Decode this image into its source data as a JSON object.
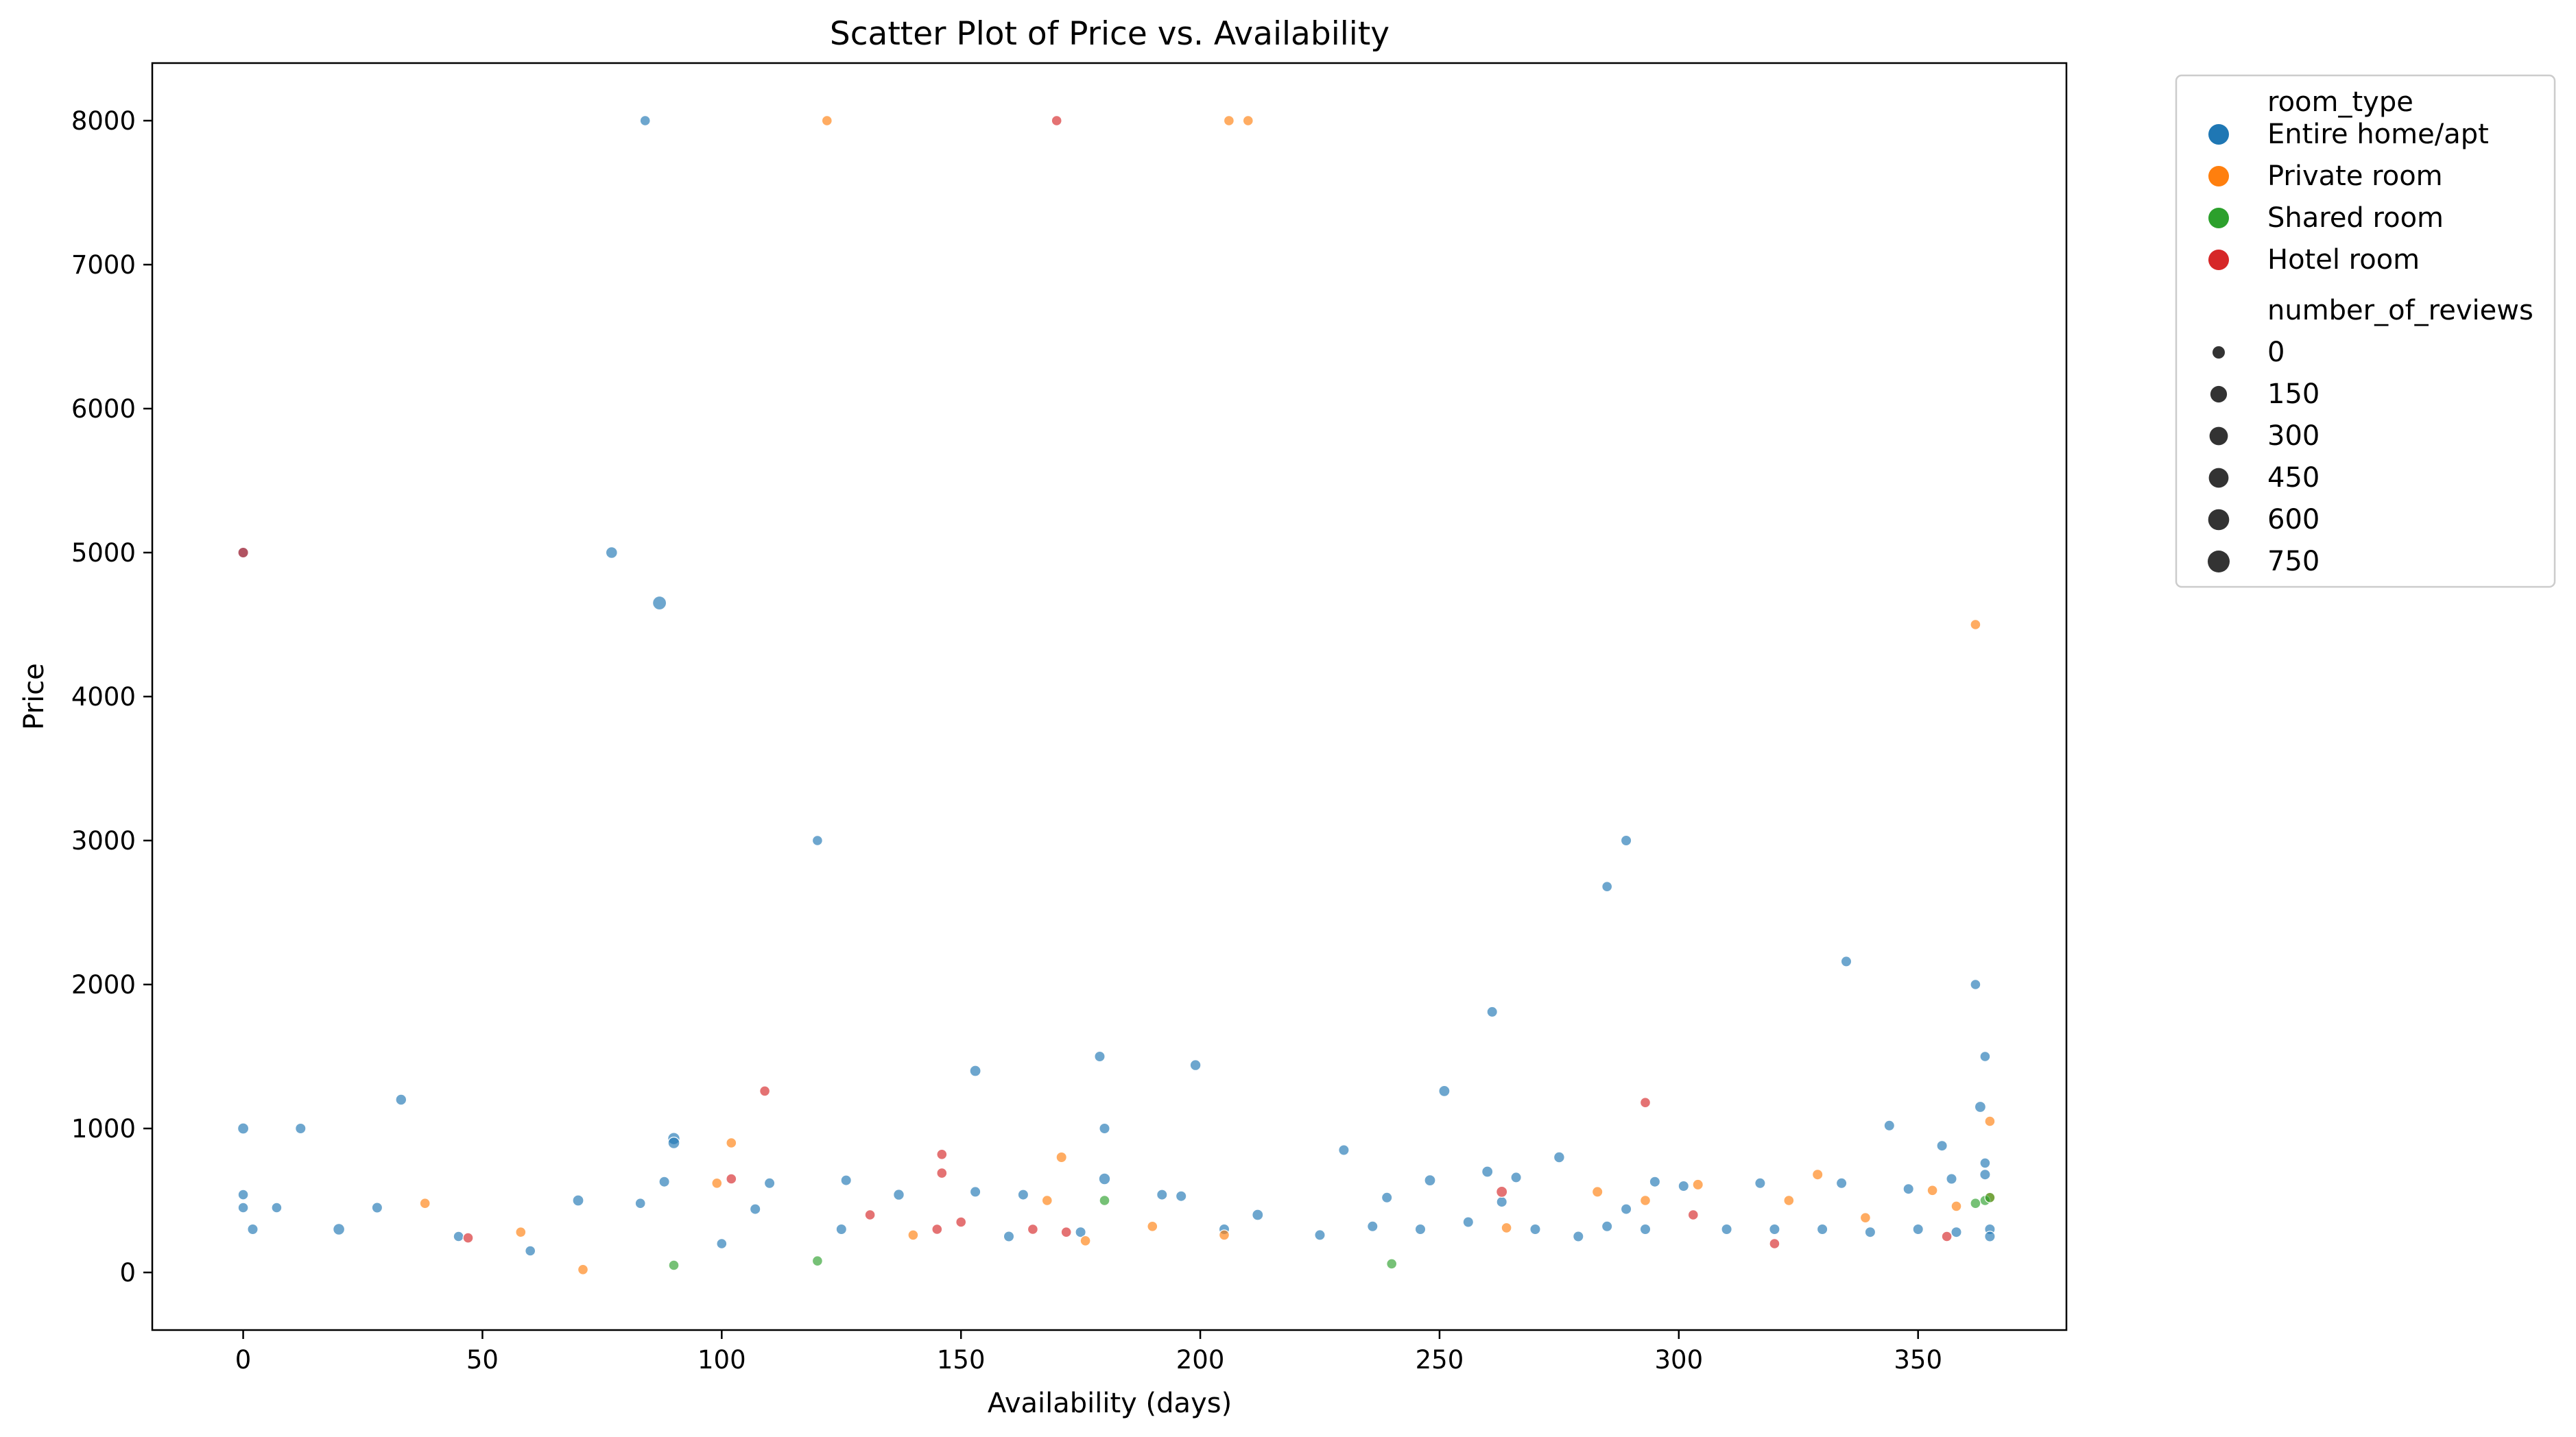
{
  "chart_data": {
    "type": "scatter",
    "title": "Scatter Plot of Price vs. Availability",
    "xlabel": "Availability (days)",
    "ylabel": "Price",
    "xlim": [
      -19,
      381
    ],
    "ylim": [
      -400,
      8400
    ],
    "xticks": [
      0,
      50,
      100,
      150,
      200,
      250,
      300,
      350
    ],
    "yticks": [
      0,
      1000,
      2000,
      3000,
      4000,
      5000,
      6000,
      7000,
      8000
    ],
    "grid": false,
    "legend": {
      "placement": "outside-right",
      "hue_title": "room_type",
      "size_title": "number_of_reviews",
      "size_levels": [
        0,
        150,
        300,
        450,
        600,
        750
      ]
    },
    "point_alpha": 0.65,
    "series": [
      {
        "name": "Entire home/apt",
        "color": "#1f77b4",
        "points": [
          [
            84,
            8000,
            30
          ],
          [
            0,
            5000,
            60
          ],
          [
            77,
            5000,
            90
          ],
          [
            87,
            4650,
            250
          ],
          [
            120,
            3000,
            30
          ],
          [
            289,
            3000,
            40
          ],
          [
            285,
            2680,
            30
          ],
          [
            335,
            2160,
            40
          ],
          [
            362,
            2000,
            30
          ],
          [
            261,
            1810,
            40
          ],
          [
            364,
            1500,
            30
          ],
          [
            179,
            1500,
            40
          ],
          [
            199,
            1440,
            50
          ],
          [
            153,
            1400,
            60
          ],
          [
            251,
            1260,
            60
          ],
          [
            33,
            1200,
            50
          ],
          [
            363,
            1150,
            60
          ],
          [
            0,
            1000,
            60
          ],
          [
            12,
            1000,
            40
          ],
          [
            180,
            1000,
            40
          ],
          [
            344,
            1020,
            40
          ],
          [
            90,
            930,
            120
          ],
          [
            90,
            900,
            90
          ],
          [
            230,
            850,
            40
          ],
          [
            275,
            800,
            50
          ],
          [
            355,
            880,
            40
          ],
          [
            364,
            760,
            30
          ],
          [
            260,
            700,
            60
          ],
          [
            0,
            540,
            30
          ],
          [
            0,
            450,
            30
          ],
          [
            7,
            450,
            30
          ],
          [
            28,
            450,
            40
          ],
          [
            70,
            500,
            60
          ],
          [
            83,
            480,
            30
          ],
          [
            88,
            630,
            40
          ],
          [
            107,
            440,
            40
          ],
          [
            110,
            620,
            40
          ],
          [
            126,
            640,
            40
          ],
          [
            137,
            540,
            50
          ],
          [
            153,
            560,
            40
          ],
          [
            163,
            540,
            40
          ],
          [
            180,
            650,
            80
          ],
          [
            192,
            540,
            40
          ],
          [
            196,
            530,
            40
          ],
          [
            239,
            520,
            40
          ],
          [
            248,
            640,
            60
          ],
          [
            263,
            490,
            40
          ],
          [
            266,
            660,
            40
          ],
          [
            289,
            440,
            40
          ],
          [
            295,
            630,
            40
          ],
          [
            301,
            600,
            40
          ],
          [
            317,
            620,
            40
          ],
          [
            334,
            620,
            40
          ],
          [
            348,
            580,
            40
          ],
          [
            357,
            650,
            40
          ],
          [
            364,
            680,
            40
          ],
          [
            2,
            300,
            40
          ],
          [
            20,
            300,
            90
          ],
          [
            45,
            250,
            30
          ],
          [
            60,
            150,
            30
          ],
          [
            100,
            200,
            30
          ],
          [
            125,
            300,
            40
          ],
          [
            160,
            250,
            40
          ],
          [
            175,
            280,
            40
          ],
          [
            205,
            300,
            40
          ],
          [
            212,
            400,
            60
          ],
          [
            225,
            260,
            40
          ],
          [
            236,
            320,
            40
          ],
          [
            246,
            300,
            40
          ],
          [
            256,
            350,
            40
          ],
          [
            270,
            300,
            40
          ],
          [
            279,
            250,
            40
          ],
          [
            285,
            320,
            40
          ],
          [
            293,
            300,
            40
          ],
          [
            310,
            300,
            40
          ],
          [
            320,
            300,
            40
          ],
          [
            330,
            300,
            40
          ],
          [
            340,
            280,
            40
          ],
          [
            350,
            300,
            40
          ],
          [
            358,
            280,
            40
          ],
          [
            365,
            300,
            40
          ],
          [
            365,
            250,
            40
          ]
        ]
      },
      {
        "name": "Private room",
        "color": "#ff7f0e",
        "points": [
          [
            122,
            8000,
            30
          ],
          [
            206,
            8000,
            30
          ],
          [
            210,
            8000,
            30
          ],
          [
            362,
            4500,
            30
          ],
          [
            365,
            1050,
            30
          ],
          [
            171,
            800,
            40
          ],
          [
            102,
            900,
            30
          ],
          [
            99,
            620,
            30
          ],
          [
            38,
            480,
            30
          ],
          [
            58,
            280,
            30
          ],
          [
            168,
            500,
            30
          ],
          [
            190,
            320,
            30
          ],
          [
            205,
            260,
            30
          ],
          [
            283,
            560,
            40
          ],
          [
            293,
            500,
            30
          ],
          [
            304,
            610,
            40
          ],
          [
            329,
            680,
            40
          ],
          [
            323,
            500,
            30
          ],
          [
            353,
            570,
            30
          ],
          [
            358,
            460,
            30
          ],
          [
            365,
            520,
            30
          ],
          [
            71,
            20,
            30
          ],
          [
            140,
            260,
            30
          ],
          [
            176,
            220,
            30
          ],
          [
            264,
            310,
            30
          ],
          [
            339,
            380,
            30
          ]
        ]
      },
      {
        "name": "Shared room",
        "color": "#2ca02c",
        "points": [
          [
            90,
            50,
            30
          ],
          [
            180,
            500,
            30
          ],
          [
            364,
            500,
            30
          ],
          [
            365,
            520,
            30
          ],
          [
            362,
            480,
            30
          ],
          [
            240,
            60,
            30
          ],
          [
            120,
            80,
            30
          ]
        ]
      },
      {
        "name": "Hotel room",
        "color": "#d62728",
        "points": [
          [
            0,
            5000,
            40
          ],
          [
            170,
            8000,
            30
          ],
          [
            109,
            1260,
            30
          ],
          [
            146,
            820,
            30
          ],
          [
            146,
            690,
            30
          ],
          [
            102,
            650,
            30
          ],
          [
            131,
            400,
            30
          ],
          [
            150,
            350,
            30
          ],
          [
            263,
            560,
            60
          ],
          [
            293,
            1180,
            30
          ],
          [
            303,
            400,
            30
          ],
          [
            47,
            240,
            30
          ],
          [
            165,
            300,
            30
          ],
          [
            172,
            280,
            30
          ],
          [
            145,
            300,
            30
          ],
          [
            320,
            200,
            30
          ],
          [
            356,
            250,
            30
          ]
        ]
      }
    ]
  }
}
